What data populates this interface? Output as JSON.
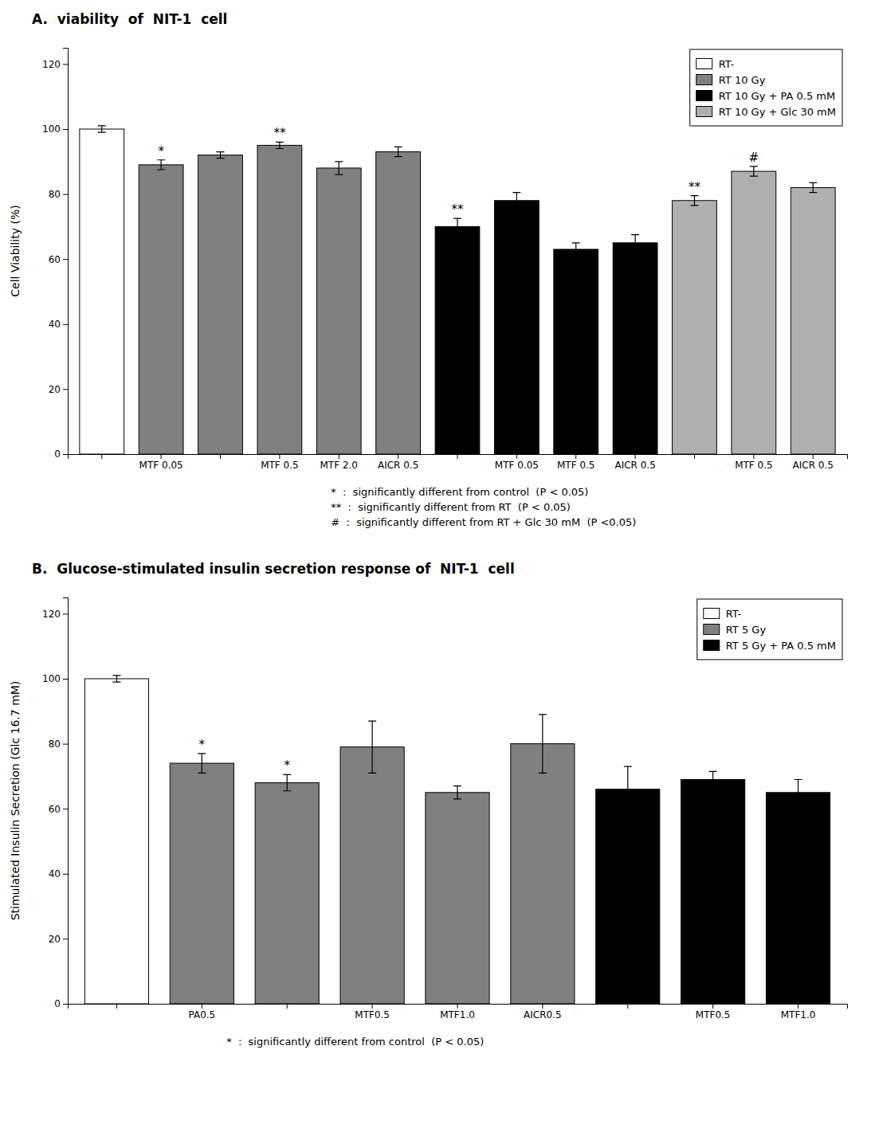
{
  "chart_data": [
    {
      "type": "bar",
      "title": "A.  viability  of  NIT-1  cell",
      "y_label": "Cell Viability (%)",
      "categories": [
        null,
        "MTF 0.05",
        null,
        "MTF 0.5",
        "MTF 2.0",
        "AICR 0.5",
        null,
        "MTF 0.05",
        "MTF 0.5",
        "AICR 0.5",
        null,
        "MTF 0.5",
        "AICR 0.5"
      ],
      "series": [
        {
          "name": "RT-",
          "color": "#ffffff",
          "values": [
            100,
            null,
            null,
            null,
            null,
            null,
            null,
            null,
            null,
            null,
            null,
            null,
            null
          ],
          "errors": [
            1.0,
            null,
            null,
            null,
            null,
            null,
            null,
            null,
            null,
            null,
            null,
            null,
            null
          ],
          "annotations": [
            null,
            null,
            null,
            null,
            null,
            null,
            null,
            null,
            null,
            null,
            null,
            null,
            null
          ]
        },
        {
          "name": "RT 10 Gy",
          "color": "#808080",
          "values": [
            null,
            89,
            92,
            95,
            88,
            93,
            null,
            null,
            null,
            null,
            null,
            null,
            null
          ],
          "errors": [
            null,
            1.5,
            1.0,
            1.0,
            2.0,
            1.5,
            null,
            null,
            null,
            null,
            null,
            null,
            null
          ],
          "annotations": [
            null,
            "*",
            null,
            "**",
            null,
            null,
            null,
            null,
            null,
            null,
            null,
            null,
            null
          ]
        },
        {
          "name": "RT 10 Gy + PA 0.5 mM",
          "color": "#000000",
          "values": [
            null,
            null,
            null,
            null,
            null,
            null,
            70,
            78,
            63,
            65,
            null,
            null,
            null
          ],
          "errors": [
            null,
            null,
            null,
            null,
            null,
            null,
            2.5,
            2.5,
            2.0,
            2.5,
            null,
            null,
            null
          ],
          "annotations": [
            null,
            null,
            null,
            null,
            null,
            null,
            "**",
            null,
            null,
            null,
            null,
            null,
            null
          ]
        },
        {
          "name": "RT 10 Gy + Glc 30 mM",
          "color": "#b0b0b0",
          "values": [
            null,
            null,
            null,
            null,
            null,
            null,
            null,
            null,
            null,
            null,
            78,
            87,
            82
          ],
          "errors": [
            null,
            null,
            null,
            null,
            null,
            null,
            null,
            null,
            null,
            null,
            1.5,
            1.5,
            1.5
          ],
          "annotations": [
            null,
            null,
            null,
            null,
            null,
            null,
            null,
            null,
            null,
            null,
            "**",
            "#",
            null
          ]
        }
      ],
      "ylim": [
        0,
        125
      ],
      "yticks": [
        0,
        20,
        40,
        60,
        80,
        100,
        120
      ],
      "legend": "upper right",
      "footnotes": [
        "*  :  significantly different from control  (P < 0.05)",
        "**  :  significantly different from RT  (P < 0.05)",
        "#  :  significantly different from RT + Glc 30 mM  (P <0.05)"
      ]
    },
    {
      "type": "bar",
      "title": "B.  Glucose-stimulated insulin secretion response of  NIT-1  cell",
      "y_label": "Stimulated Insulin Secretion (Glc 16.7 mM)",
      "categories": [
        null,
        "PA0.5",
        null,
        "MTF0.5",
        "MTF1.0",
        "AICR0.5",
        null,
        "MTF0.5",
        "MTF1.0"
      ],
      "series": [
        {
          "name": "RT-",
          "color": "#ffffff",
          "values": [
            100,
            null,
            null,
            null,
            null,
            null,
            null,
            null,
            null
          ],
          "errors": [
            1.0,
            null,
            null,
            null,
            null,
            null,
            null,
            null,
            null
          ],
          "annotations": [
            null,
            null,
            null,
            null,
            null,
            null,
            null,
            null,
            null
          ]
        },
        {
          "name": "RT 5 Gy",
          "color": "#808080",
          "values": [
            null,
            74,
            68,
            79,
            65,
            80,
            null,
            null,
            null
          ],
          "errors": [
            null,
            3.0,
            2.5,
            8.0,
            2.0,
            9.0,
            null,
            null,
            null
          ],
          "annotations": [
            null,
            "*",
            "*",
            null,
            null,
            null,
            null,
            null,
            null
          ]
        },
        {
          "name": "RT 5 Gy + PA 0.5 mM",
          "color": "#000000",
          "values": [
            null,
            null,
            null,
            null,
            null,
            null,
            66,
            69,
            65
          ],
          "errors": [
            null,
            null,
            null,
            null,
            null,
            null,
            7.0,
            2.5,
            4.0
          ],
          "annotations": [
            null,
            null,
            null,
            null,
            null,
            null,
            null,
            null,
            null
          ]
        }
      ],
      "ylim": [
        0,
        125
      ],
      "yticks": [
        0,
        20,
        40,
        60,
        80,
        100,
        120
      ],
      "legend": "upper right",
      "footnotes": [
        "*  :  significantly different from control  (P < 0.05)"
      ]
    }
  ]
}
